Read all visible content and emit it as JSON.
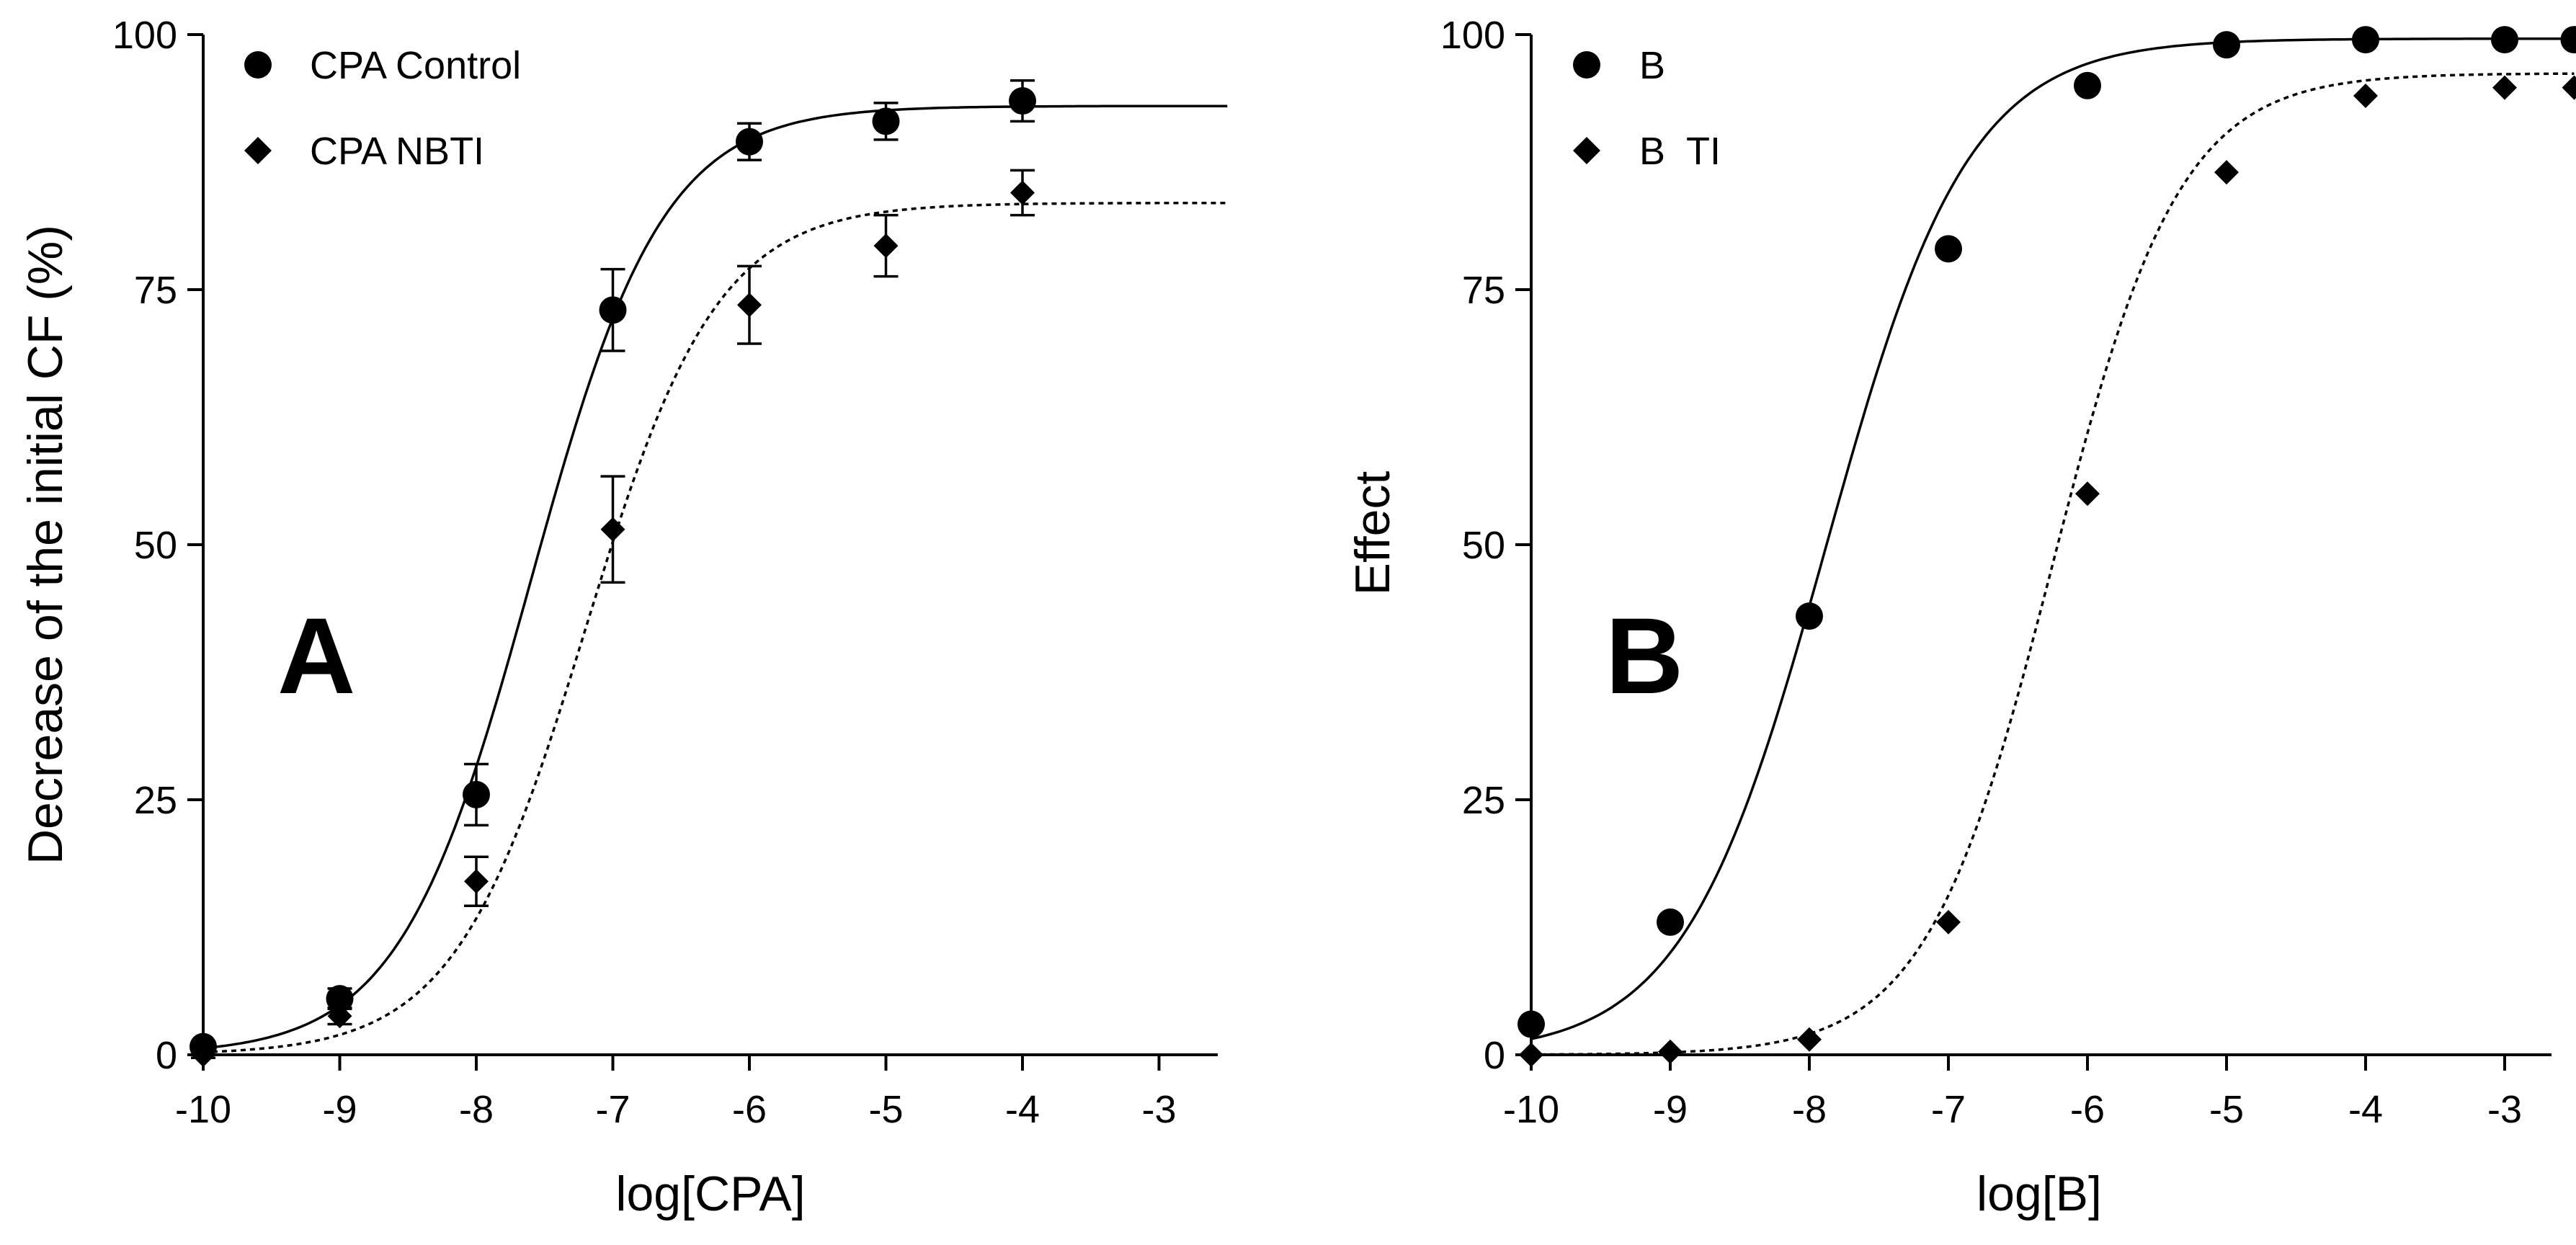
{
  "chart_data": [
    {
      "type": "scatter",
      "panel_label": "A",
      "xlabel": "log[CPA]",
      "ylabel": "Decrease of the initial CF  (%)",
      "xlim": [
        -10,
        -2.5
      ],
      "ylim": [
        0,
        100
      ],
      "xticks": [
        -10,
        -9,
        -8,
        -7,
        -6,
        -5,
        -4,
        -3
      ],
      "xtick_labels": [
        "-10",
        "-9",
        "-8",
        "-7",
        "-6",
        "-5",
        "-4",
        "-3"
      ],
      "yticks": [
        0,
        25,
        50,
        75,
        100
      ],
      "ytick_labels": [
        "0",
        "25",
        "50",
        "75",
        "100"
      ],
      "legend_position": "top-left",
      "series": [
        {
          "name": "CPA Control",
          "marker": "circle",
          "line": "solid",
          "x": [
            -10,
            -9,
            -8,
            -7,
            -6,
            -5,
            -4
          ],
          "y": [
            0.8,
            5.5,
            25.5,
            73,
            89.5,
            91.5,
            93.5
          ],
          "error": [
            0.5,
            1,
            3,
            4,
            1.8,
            1.8,
            2
          ],
          "fit": {
            "bottom": 0,
            "top": 93,
            "logEC50": -7.6,
            "hill": 0.9
          }
        },
        {
          "name": "CPA NBTI",
          "marker": "diamond",
          "line": "dotted",
          "x": [
            -10,
            -9,
            -8,
            -7,
            -6,
            -5,
            -4
          ],
          "y": [
            0,
            3.8,
            17,
            51.5,
            73.5,
            79.3,
            84.5
          ],
          "error": [
            0.3,
            0.8,
            2.4,
            5.2,
            3.8,
            3,
            2.2
          ],
          "fit": {
            "bottom": 0,
            "top": 83.5,
            "logEC50": -7.2,
            "hill": 0.9
          }
        }
      ]
    },
    {
      "type": "scatter",
      "panel_label": "B",
      "xlabel": "log[B]",
      "ylabel": "Effect",
      "xlim": [
        -10,
        -2.5
      ],
      "ylim": [
        0,
        100
      ],
      "xticks": [
        -10,
        -9,
        -8,
        -7,
        -6,
        -5,
        -4,
        -3
      ],
      "xtick_labels": [
        "-10",
        "-9",
        "-8",
        "-7",
        "-6",
        "-5",
        "-4",
        "-3"
      ],
      "yticks": [
        0,
        25,
        50,
        75,
        100
      ],
      "ytick_labels": [
        "0",
        "25",
        "50",
        "75",
        "100"
      ],
      "legend_position": "top-left",
      "series": [
        {
          "name": "B",
          "marker": "circle",
          "line": "solid",
          "x": [
            -10,
            -9,
            -8,
            -7,
            -6,
            -5,
            -4,
            -3,
            -2.5
          ],
          "y": [
            3,
            13,
            43,
            79,
            95,
            99,
            99.5,
            99.5,
            99.5
          ],
          "error": [],
          "fit": {
            "bottom": 0,
            "top": 99.6,
            "logEC50": -7.88,
            "hill": 0.85
          }
        },
        {
          "name": "B  TI",
          "marker": "diamond",
          "line": "dotted",
          "x": [
            -10,
            -9,
            -8,
            -7,
            -6,
            -5,
            -4,
            -3,
            -2.5
          ],
          "y": [
            0,
            0.3,
            1.5,
            13,
            55,
            86.5,
            94,
            94.8,
            94.8
          ],
          "error": [],
          "fit": {
            "bottom": 0,
            "top": 96.2,
            "logEC50": -6.25,
            "hill": 0.95
          }
        }
      ]
    }
  ]
}
